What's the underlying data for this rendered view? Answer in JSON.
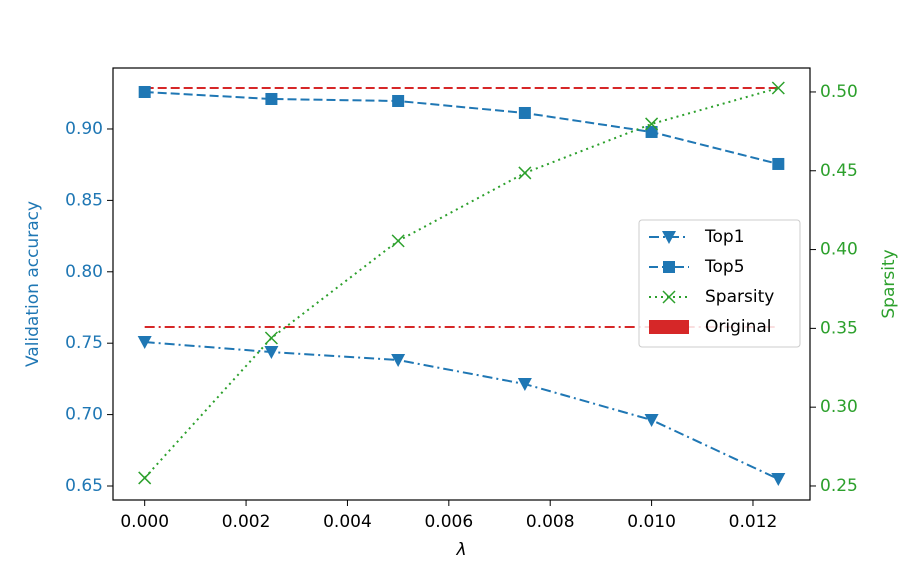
{
  "chart_data": {
    "type": "line",
    "x_label": "λ",
    "y_label": "Validation accuracy",
    "y2_label": "Sparsity",
    "x": [
      0,
      0.0025,
      0.005,
      0.0075,
      0.01,
      0.0125
    ],
    "xlim": [
      -0.000625,
      0.013125
    ],
    "xticks": [
      {
        "value": 0,
        "label": "0.000"
      },
      {
        "value": 0.002,
        "label": "0.002"
      },
      {
        "value": 0.004,
        "label": "0.004"
      },
      {
        "value": 0.006,
        "label": "0.006"
      },
      {
        "value": 0.008,
        "label": "0.008"
      },
      {
        "value": 0.01,
        "label": "0.010"
      },
      {
        "value": 0.012,
        "label": "0.012"
      }
    ],
    "ylim": [
      0.6402,
      0.9427
    ],
    "yticks": [
      {
        "value": 0.65,
        "label": "0.65"
      },
      {
        "value": 0.7,
        "label": "0.70"
      },
      {
        "value": 0.75,
        "label": "0.75"
      },
      {
        "value": 0.8,
        "label": "0.80"
      },
      {
        "value": 0.85,
        "label": "0.85"
      },
      {
        "value": 0.9,
        "label": "0.90"
      }
    ],
    "y2lim": [
      0.2411,
      0.5152
    ],
    "y2ticks": [
      {
        "value": 0.25,
        "label": "0.25"
      },
      {
        "value": 0.3,
        "label": "0.30"
      },
      {
        "value": 0.35,
        "label": "0.35"
      },
      {
        "value": 0.4,
        "label": "0.40"
      },
      {
        "value": 0.45,
        "label": "0.45"
      },
      {
        "value": 0.5,
        "label": "0.50"
      }
    ],
    "y_color": "#1f77b4",
    "y2_color": "#2ca02c",
    "series": [
      {
        "name": "Top1",
        "color": "#1f77b4",
        "marker": "triangle-down",
        "linestyle": "dashdot",
        "values": [
          0.7508,
          0.7438,
          0.7382,
          0.7214,
          0.6962,
          0.6549
        ]
      },
      {
        "name": "Top5",
        "color": "#1f77b4",
        "marker": "square",
        "linestyle": "dashed",
        "values": [
          0.9259,
          0.921,
          0.9196,
          0.9112,
          0.8979,
          0.8755
        ]
      },
      {
        "name": "Sparsity",
        "color": "#2ca02c",
        "marker": "x",
        "linestyle": "dotted",
        "axis": "y2",
        "values": [
          0.2551,
          0.3439,
          0.4055,
          0.4486,
          0.4797,
          0.5025
        ]
      }
    ],
    "reference": {
      "name": "Original",
      "color": "#d62728",
      "values": [
        0.7613,
        0.9287
      ],
      "linestyles": [
        "dashdot",
        "dashed"
      ]
    },
    "legend": "center-right"
  }
}
